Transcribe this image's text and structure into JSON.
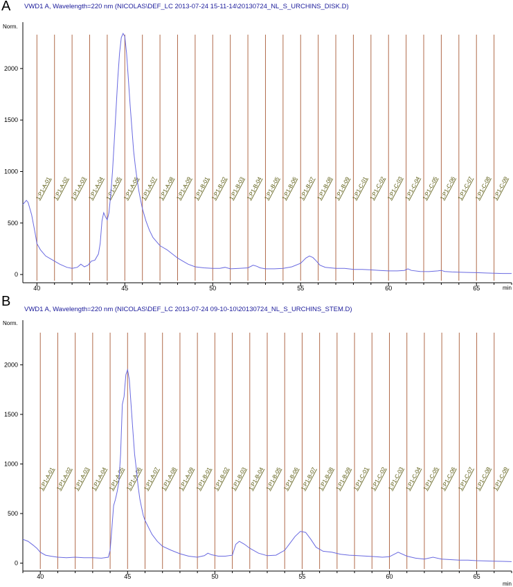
{
  "chart_data": [
    {
      "type": "line",
      "panel_label": "A",
      "title": "VWD1 A, Wavelength=220 nm (NICOLAS\\DEF_LC 2013-07-24 15-11-14\\20130724_NL_S_URCHINS_DISK.D)",
      "ylabel": "Norm.",
      "xlabel": "min",
      "xlim": [
        39.2,
        67
      ],
      "ylim": [
        -80,
        2450
      ],
      "x_ticks": [
        "40",
        "45",
        "50",
        "55",
        "60",
        "65"
      ],
      "y_ticks": [
        "0",
        "500",
        "1000",
        "1500",
        "2000"
      ],
      "fractions": [
        {
          "label": "1:P1-A-01",
          "x": 40
        },
        {
          "label": "1:P1-A-02",
          "x": 41
        },
        {
          "label": "1:P1-A-03",
          "x": 42
        },
        {
          "label": "1:P1-A-04",
          "x": 43
        },
        {
          "label": "1:P1-A-05",
          "x": 44
        },
        {
          "label": "1:P1-A-06",
          "x": 45
        },
        {
          "label": "1:P1-A-07",
          "x": 46
        },
        {
          "label": "1:P1-A-08",
          "x": 47
        },
        {
          "label": "1:P1-A-09",
          "x": 48
        },
        {
          "label": "1:P1-B-01",
          "x": 49
        },
        {
          "label": "1:P1-B-02",
          "x": 50
        },
        {
          "label": "1:P1-B-03",
          "x": 51
        },
        {
          "label": "1:P1-B-04",
          "x": 52
        },
        {
          "label": "1:P1-B-05",
          "x": 53
        },
        {
          "label": "1:P1-B-06",
          "x": 54
        },
        {
          "label": "1:P1-B-07",
          "x": 55
        },
        {
          "label": "1:P1-B-08",
          "x": 56
        },
        {
          "label": "1:P1-B-09",
          "x": 57
        },
        {
          "label": "1:P1-C-01",
          "x": 58
        },
        {
          "label": "1:P1-C-02",
          "x": 59
        },
        {
          "label": "1:P1-C-03",
          "x": 60
        },
        {
          "label": "1:P1-C-04",
          "x": 61
        },
        {
          "label": "1:P1-C-05",
          "x": 62
        },
        {
          "label": "1:P1-C-06",
          "x": 63
        },
        {
          "label": "1:P1-C-07",
          "x": 64
        },
        {
          "label": "1:P1-C-08",
          "x": 65
        },
        {
          "label": "1:P1-C-09",
          "x": 66
        }
      ],
      "series": [
        {
          "x": [
            39.2,
            39.4,
            39.5,
            39.7,
            39.9,
            40.0,
            40.2,
            40.5,
            40.9,
            41.3,
            41.7,
            42.0,
            42.3,
            42.5,
            42.7,
            42.9,
            43.1,
            43.3,
            43.5,
            43.6,
            43.7,
            43.8,
            43.9,
            44.0,
            44.1,
            44.2,
            44.3,
            44.4,
            44.5,
            44.6,
            44.7,
            44.8,
            44.9,
            45.0,
            45.1,
            45.2,
            45.3,
            45.4,
            45.5,
            45.6,
            45.7,
            45.8,
            45.9,
            46.0,
            46.2,
            46.4,
            46.6,
            46.8,
            47.0,
            47.2,
            47.4,
            47.7,
            48.0,
            48.3,
            48.6,
            49.0,
            49.5,
            50.0,
            50.4,
            50.7,
            51.0,
            51.5,
            52.0,
            52.3,
            52.5,
            52.7,
            53.0,
            53.5,
            54.0,
            54.5,
            55.0,
            55.3,
            55.5,
            55.7,
            55.9,
            56.1,
            56.4,
            57.0,
            57.5,
            58.0,
            58.5,
            59.0,
            59.5,
            60.0,
            60.5,
            60.9,
            61.1,
            61.3,
            61.8,
            62.3,
            62.8,
            63.0,
            63.2,
            63.6,
            64.0,
            64.5,
            65.0,
            65.5,
            66.0,
            66.5,
            67.0
          ],
          "y": [
            680,
            720,
            700,
            580,
            400,
            300,
            240,
            180,
            140,
            100,
            70,
            60,
            70,
            100,
            75,
            90,
            130,
            140,
            200,
            300,
            520,
            600,
            560,
            530,
            600,
            780,
            1000,
            1300,
            1600,
            1900,
            2150,
            2300,
            2340,
            2310,
            2150,
            1900,
            1650,
            1420,
            1200,
            1050,
            920,
            810,
            720,
            640,
            520,
            430,
            360,
            320,
            280,
            260,
            240,
            200,
            160,
            130,
            100,
            75,
            65,
            60,
            60,
            70,
            55,
            60,
            65,
            90,
            80,
            65,
            55,
            55,
            60,
            75,
            110,
            160,
            180,
            165,
            130,
            90,
            70,
            60,
            60,
            50,
            50,
            45,
            40,
            35,
            35,
            40,
            55,
            40,
            30,
            28,
            35,
            40,
            30,
            25,
            22,
            20,
            18,
            15,
            12,
            10,
            10
          ]
        }
      ]
    },
    {
      "type": "line",
      "panel_label": "B",
      "title": "VWD1 A, Wavelength=220 nm (NICOLAS\\DEF_LC 2013-07-24 09-10-10\\20130724_NL_S_URCHINS_STEM.D)",
      "ylabel": "Norm.",
      "xlabel": "min",
      "xlim": [
        39.0,
        67
      ],
      "ylim": [
        -80,
        2450
      ],
      "x_ticks": [
        "40",
        "45",
        "50",
        "55",
        "60",
        "65"
      ],
      "y_ticks": [
        "0",
        "500",
        "1000",
        "1500",
        "2000"
      ],
      "fractions": [
        {
          "label": "1:P1-A-01",
          "x": 40
        },
        {
          "label": "1:P1-A-02",
          "x": 41
        },
        {
          "label": "1:P1-A-03",
          "x": 42
        },
        {
          "label": "1:P1-A-04",
          "x": 43
        },
        {
          "label": "1:P1-A-05",
          "x": 44
        },
        {
          "label": "1:P1-A-06",
          "x": 45
        },
        {
          "label": "1:P1-A-07",
          "x": 46
        },
        {
          "label": "1:P1-A-08",
          "x": 47
        },
        {
          "label": "1:P1-A-09",
          "x": 48
        },
        {
          "label": "1:P1-B-01",
          "x": 49
        },
        {
          "label": "1:P1-B-02",
          "x": 50
        },
        {
          "label": "1:P1-B-03",
          "x": 51
        },
        {
          "label": "1:P1-B-04",
          "x": 52
        },
        {
          "label": "1:P1-B-05",
          "x": 53
        },
        {
          "label": "1:P1-B-06",
          "x": 54
        },
        {
          "label": "1:P1-B-07",
          "x": 55
        },
        {
          "label": "1:P1-B-08",
          "x": 56
        },
        {
          "label": "1:P1-B-09",
          "x": 57
        },
        {
          "label": "1:P1-C-01",
          "x": 58
        },
        {
          "label": "1:P1-C-02",
          "x": 59
        },
        {
          "label": "1:P1-C-03",
          "x": 60
        },
        {
          "label": "1:P1-C-04",
          "x": 61
        },
        {
          "label": "1:P1-C-05",
          "x": 62
        },
        {
          "label": "1:P1-C-06",
          "x": 63
        },
        {
          "label": "1:P1-C-07",
          "x": 64
        },
        {
          "label": "1:P1-C-08",
          "x": 65
        },
        {
          "label": "1:P1-C-09",
          "x": 66
        }
      ],
      "series": [
        {
          "x": [
            39.0,
            39.3,
            39.6,
            39.8,
            40.0,
            40.3,
            40.6,
            41.0,
            41.5,
            42.0,
            42.5,
            43.0,
            43.5,
            43.9,
            44.0,
            44.1,
            44.2,
            44.3,
            44.4,
            44.5,
            44.6,
            44.7,
            44.8,
            44.9,
            45.0,
            45.1,
            45.2,
            45.3,
            45.4,
            45.5,
            45.6,
            45.7,
            45.8,
            45.9,
            46.0,
            46.2,
            46.4,
            46.7,
            47.0,
            47.5,
            48.0,
            48.5,
            49.0,
            49.4,
            49.6,
            49.8,
            50.2,
            50.6,
            51.0,
            51.2,
            51.4,
            51.7,
            52.0,
            52.5,
            53.0,
            53.5,
            54.0,
            54.3,
            54.6,
            54.9,
            55.2,
            55.5,
            55.8,
            56.2,
            56.7,
            57.2,
            57.7,
            58.2,
            58.7,
            59.2,
            59.6,
            60.0,
            60.5,
            61.0,
            61.5,
            62.0,
            62.5,
            63.0,
            63.5,
            64.0,
            64.5,
            65.0,
            65.5,
            66.0,
            66.5,
            67.0
          ],
          "y": [
            240,
            220,
            180,
            150,
            110,
            80,
            70,
            60,
            55,
            60,
            55,
            55,
            50,
            60,
            130,
            350,
            580,
            640,
            720,
            820,
            1100,
            1600,
            1680,
            1900,
            1950,
            1850,
            1600,
            1350,
            1100,
            950,
            780,
            650,
            560,
            480,
            430,
            360,
            290,
            220,
            170,
            130,
            95,
            70,
            60,
            75,
            100,
            85,
            70,
            70,
            80,
            190,
            220,
            190,
            150,
            100,
            75,
            80,
            130,
            200,
            270,
            320,
            310,
            240,
            160,
            120,
            110,
            90,
            80,
            75,
            70,
            65,
            60,
            65,
            110,
            70,
            50,
            40,
            60,
            40,
            35,
            30,
            30,
            25,
            22,
            20,
            18,
            15
          ]
        }
      ]
    }
  ]
}
